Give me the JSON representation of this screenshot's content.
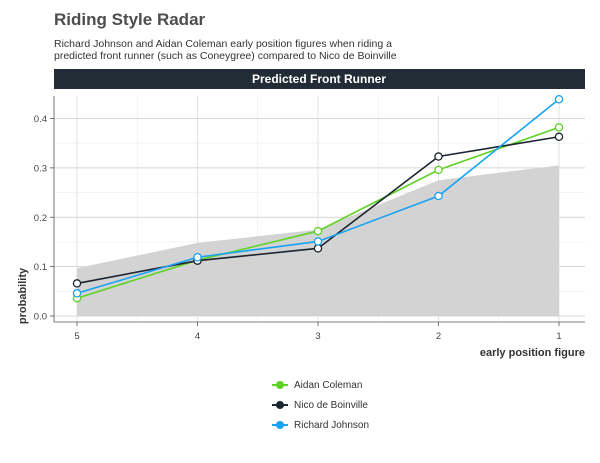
{
  "chart_data": {
    "type": "line",
    "title": "Riding Style Radar",
    "subtitle": "Richard Johnson and Aidan Coleman early position figures when riding a predicted front runner (such as Coneygree) compared to Nico de Boinville",
    "facet_label": "Predicted Front Runner",
    "xlabel": "early position figure",
    "ylabel": "probability",
    "categories": [
      "5",
      "4",
      "3",
      "2",
      "1"
    ],
    "ylim": [
      0,
      0.45
    ],
    "yticks": [
      "0.0",
      "0.1",
      "0.2",
      "0.3",
      "0.4"
    ],
    "grid": true,
    "legend_position": "bottom",
    "band": {
      "lower": [
        0,
        0,
        0,
        0,
        0
      ],
      "upper": [
        0.097,
        0.148,
        0.175,
        0.275,
        0.305
      ],
      "color": "#d3d3d3"
    },
    "series": [
      {
        "name": "Aidan Coleman",
        "color": "#5fd325",
        "values": [
          0.036,
          0.113,
          0.172,
          0.296,
          0.382
        ]
      },
      {
        "name": "Nico de Boinville",
        "color": "#1c2530",
        "values": [
          0.066,
          0.112,
          0.137,
          0.323,
          0.363
        ]
      },
      {
        "name": "Richard Johnson",
        "color": "#17a2f3",
        "values": [
          0.046,
          0.119,
          0.151,
          0.243,
          0.439
        ]
      }
    ]
  }
}
